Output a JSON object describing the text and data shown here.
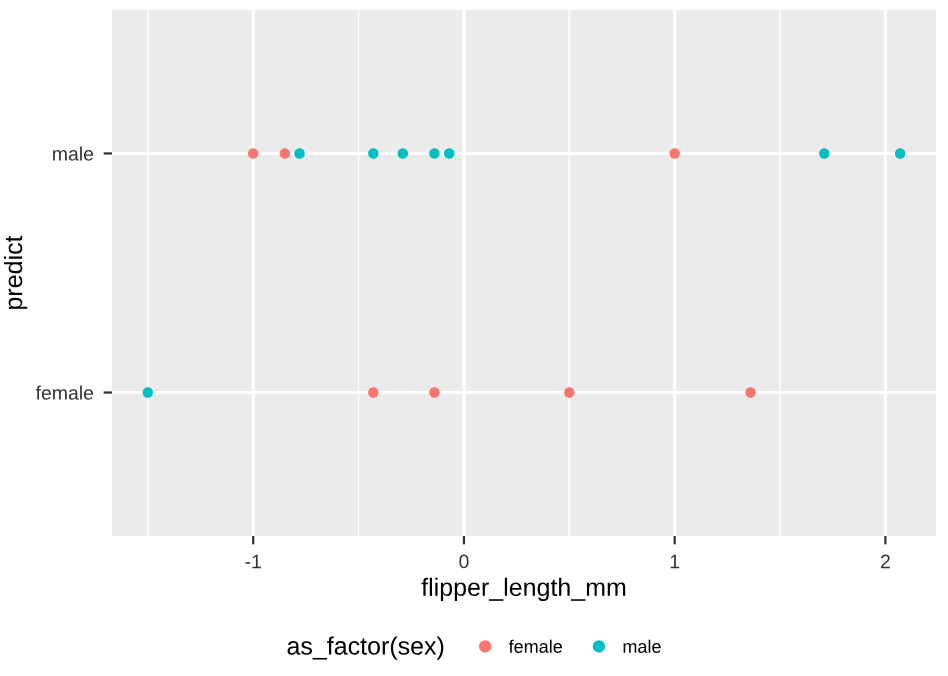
{
  "chart_data": {
    "type": "scatter",
    "orientation": "horizontal",
    "xlabel": "flipper_length_mm",
    "ylabel": "predict",
    "legend_title": "as_factor(sex)",
    "categories": [
      "male",
      "female"
    ],
    "xlim": [
      -1.67,
      2.24
    ],
    "xticks": [
      {
        "value": -1,
        "label": "-1"
      },
      {
        "value": 0,
        "label": "0"
      },
      {
        "value": 1,
        "label": "1"
      },
      {
        "value": 2,
        "label": "2"
      }
    ],
    "grid": true,
    "legend": "bottom",
    "marker": "circle",
    "series": [
      {
        "name": "female",
        "color": "#f8766d",
        "x": [
          "male",
          "male",
          "male",
          "female",
          "female",
          "female",
          "female"
        ],
        "values": [
          -1.0,
          -0.85,
          1.0,
          -0.43,
          -0.14,
          0.5,
          1.36
        ]
      },
      {
        "name": "male",
        "color": "#00bfc4",
        "x": [
          "male",
          "male",
          "male",
          "male",
          "male",
          "male",
          "male",
          "female"
        ],
        "values": [
          -0.78,
          -0.43,
          -0.29,
          -0.14,
          -0.07,
          1.71,
          2.07,
          -1.5
        ]
      }
    ]
  }
}
